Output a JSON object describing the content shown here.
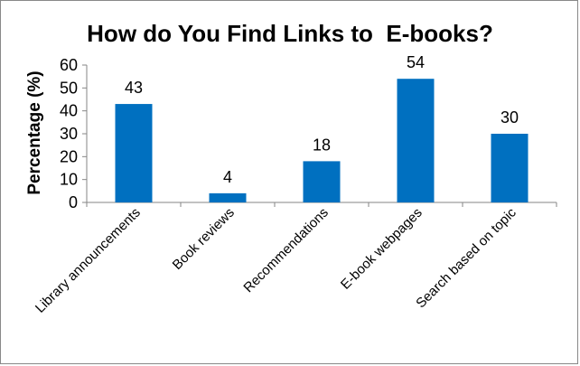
{
  "chart_data": {
    "type": "bar",
    "title": "How do You Find Links to  E-books?",
    "xlabel": "",
    "ylabel": "Percentage (%)",
    "categories": [
      "Library announcements",
      "Book reviews",
      "Recommendations",
      "E-book webpages",
      "Search based on topic"
    ],
    "values": [
      43,
      4,
      18,
      54,
      30
    ],
    "ylim": [
      0,
      60
    ],
    "yticks": [
      "0",
      "10",
      "20",
      "30",
      "40",
      "50",
      "60"
    ],
    "grid": false,
    "legend": "none",
    "bar_color": "#0070C0"
  }
}
